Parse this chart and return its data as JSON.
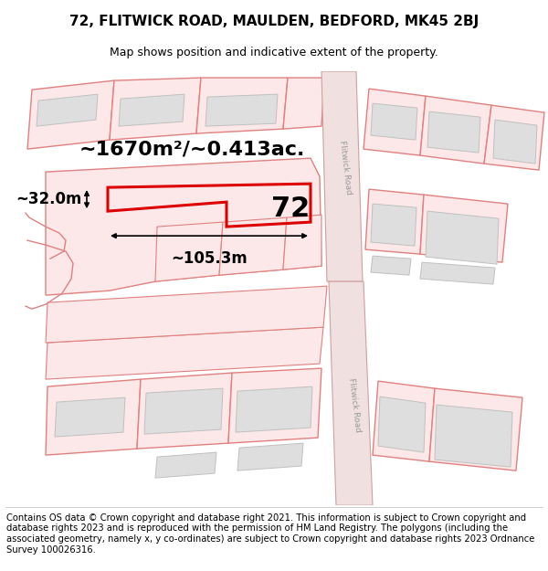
{
  "title": "72, FLITWICK ROAD, MAULDEN, BEDFORD, MK45 2BJ",
  "subtitle": "Map shows position and indicative extent of the property.",
  "footer": "Contains OS data © Crown copyright and database right 2021. This information is subject to Crown copyright and database rights 2023 and is reproduced with the permission of HM Land Registry. The polygons (including the associated geometry, namely x, y co-ordinates) are subject to Crown copyright and database rights 2023 Ordnance Survey 100026316.",
  "area_label": "~1670m²/~0.413ac.",
  "width_label": "~105.3m",
  "height_label": "~32.0m",
  "number_label": "72",
  "plot_fill": "#fce8e8",
  "plot_edge": "#e08080",
  "building_fill": "#dedede",
  "building_edge": "#c0c0c0",
  "road_fill": "#f0e0e0",
  "road_edge": "#d0a0a0",
  "highlight_edge": "#dd0000",
  "road_text_color": "#999999",
  "title_fontsize": 11,
  "subtitle_fontsize": 9,
  "footer_fontsize": 7.2,
  "area_fontsize": 16,
  "number_fontsize": 22,
  "dim_fontsize": 12
}
